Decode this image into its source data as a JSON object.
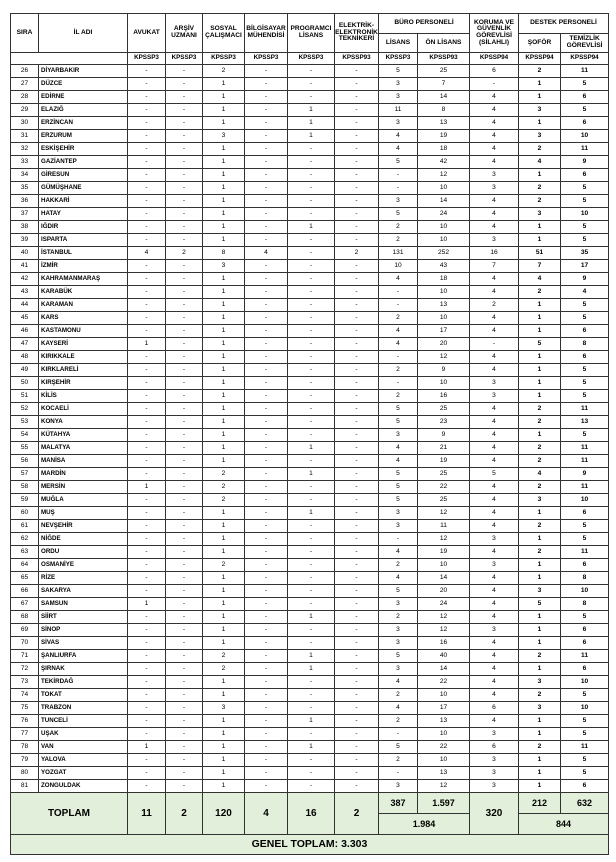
{
  "headers": {
    "sira": "SIRA",
    "il_adi": "İL ADI",
    "avukat": "AVUKAT",
    "arsiv": "ARŞİV UZMANI",
    "sosyal": "SOSYAL ÇALIŞMACI",
    "bilgisayar": "BİLGİSAYAR MÜHENDİSİ",
    "programci": "PROGRAMCI LİSANS",
    "elektrik": "ELEKTRİK-ELEKTRONİK TEKNİKERİ",
    "buro": "BÜRO PERSONELİ",
    "buro_lisans": "LİSANS",
    "buro_onlisans": "ÖN LİSANS",
    "koruma": "KORUMA VE GÜVENLİK GÖREVLİSİ (SİLAHLI)",
    "destek": "DESTEK PERSONELİ",
    "sofor": "ŞOFÖR",
    "temizlik": "TEMİZLİK GÖREVLİSİ"
  },
  "kpss": [
    "KPSSP3",
    "KPSSP3",
    "KPSSP3",
    "KPSSP3",
    "KPSSP3",
    "KPSSP93",
    "KPSSP3",
    "KPSSP93",
    "KPSSP94",
    "KPSSP94",
    "KPSSP94"
  ],
  "rows": [
    [
      "26",
      "DİYARBAKIR",
      "-",
      "-",
      "2",
      "-",
      "-",
      "-",
      "5",
      "25",
      "6",
      "2",
      "11"
    ],
    [
      "27",
      "DÜZCE",
      "-",
      "-",
      "1",
      "-",
      "-",
      "-",
      "3",
      "7",
      "-",
      "1",
      "5"
    ],
    [
      "28",
      "EDİRNE",
      "-",
      "-",
      "1",
      "-",
      "-",
      "-",
      "3",
      "14",
      "4",
      "1",
      "6"
    ],
    [
      "29",
      "ELAZIĞ",
      "-",
      "-",
      "1",
      "-",
      "1",
      "-",
      "11",
      "8",
      "4",
      "3",
      "5"
    ],
    [
      "30",
      "ERZİNCAN",
      "-",
      "-",
      "1",
      "-",
      "1",
      "-",
      "3",
      "13",
      "4",
      "1",
      "6"
    ],
    [
      "31",
      "ERZURUM",
      "-",
      "-",
      "3",
      "-",
      "1",
      "-",
      "4",
      "19",
      "4",
      "3",
      "10"
    ],
    [
      "32",
      "ESKİŞEHİR",
      "-",
      "-",
      "1",
      "-",
      "-",
      "-",
      "4",
      "18",
      "4",
      "2",
      "11"
    ],
    [
      "33",
      "GAZİANTEP",
      "-",
      "-",
      "1",
      "-",
      "-",
      "-",
      "5",
      "42",
      "4",
      "4",
      "9"
    ],
    [
      "34",
      "GİRESUN",
      "-",
      "-",
      "1",
      "-",
      "-",
      "-",
      "-",
      "12",
      "3",
      "1",
      "6"
    ],
    [
      "35",
      "GÜMÜŞHANE",
      "-",
      "-",
      "1",
      "-",
      "-",
      "-",
      "-",
      "10",
      "3",
      "2",
      "5"
    ],
    [
      "36",
      "HAKKARİ",
      "-",
      "-",
      "1",
      "-",
      "-",
      "-",
      "3",
      "14",
      "4",
      "2",
      "5"
    ],
    [
      "37",
      "HATAY",
      "-",
      "-",
      "1",
      "-",
      "-",
      "-",
      "5",
      "24",
      "4",
      "3",
      "10"
    ],
    [
      "38",
      "IĞDIR",
      "-",
      "-",
      "1",
      "-",
      "1",
      "-",
      "2",
      "10",
      "4",
      "1",
      "5"
    ],
    [
      "39",
      "ISPARTA",
      "-",
      "-",
      "1",
      "-",
      "-",
      "-",
      "2",
      "10",
      "3",
      "1",
      "5"
    ],
    [
      "40",
      "İSTANBUL",
      "4",
      "2",
      "8",
      "4",
      "-",
      "2",
      "131",
      "252",
      "16",
      "51",
      "35"
    ],
    [
      "41",
      "İZMİR",
      "-",
      "-",
      "3",
      "-",
      "-",
      "-",
      "10",
      "43",
      "7",
      "7",
      "17"
    ],
    [
      "42",
      "KAHRAMANMARAŞ",
      "-",
      "-",
      "1",
      "-",
      "-",
      "-",
      "4",
      "18",
      "4",
      "4",
      "9"
    ],
    [
      "43",
      "KARABÜK",
      "-",
      "-",
      "1",
      "-",
      "-",
      "-",
      "-",
      "10",
      "4",
      "2",
      "4"
    ],
    [
      "44",
      "KARAMAN",
      "-",
      "-",
      "1",
      "-",
      "-",
      "-",
      "-",
      "13",
      "2",
      "1",
      "5"
    ],
    [
      "45",
      "KARS",
      "-",
      "-",
      "1",
      "-",
      "-",
      "-",
      "2",
      "10",
      "4",
      "1",
      "5"
    ],
    [
      "46",
      "KASTAMONU",
      "-",
      "-",
      "1",
      "-",
      "-",
      "-",
      "4",
      "17",
      "4",
      "1",
      "6"
    ],
    [
      "47",
      "KAYSERİ",
      "1",
      "-",
      "1",
      "-",
      "-",
      "-",
      "4",
      "20",
      "-",
      "5",
      "8"
    ],
    [
      "48",
      "KIRIKKALE",
      "-",
      "-",
      "1",
      "-",
      "-",
      "-",
      "-",
      "12",
      "4",
      "1",
      "6"
    ],
    [
      "49",
      "KIRKLARELİ",
      "-",
      "-",
      "1",
      "-",
      "-",
      "-",
      "2",
      "9",
      "4",
      "1",
      "5"
    ],
    [
      "50",
      "KIRŞEHİR",
      "-",
      "-",
      "1",
      "-",
      "-",
      "-",
      "-",
      "10",
      "3",
      "1",
      "5"
    ],
    [
      "51",
      "KİLİS",
      "-",
      "-",
      "1",
      "-",
      "-",
      "-",
      "2",
      "16",
      "3",
      "1",
      "5"
    ],
    [
      "52",
      "KOCAELİ",
      "-",
      "-",
      "1",
      "-",
      "-",
      "-",
      "5",
      "25",
      "4",
      "2",
      "11"
    ],
    [
      "53",
      "KONYA",
      "-",
      "-",
      "1",
      "-",
      "-",
      "-",
      "5",
      "23",
      "4",
      "2",
      "13"
    ],
    [
      "54",
      "KÜTAHYA",
      "-",
      "-",
      "1",
      "-",
      "-",
      "-",
      "3",
      "9",
      "4",
      "1",
      "5"
    ],
    [
      "55",
      "MALATYA",
      "-",
      "-",
      "1",
      "-",
      "1",
      "-",
      "4",
      "21",
      "4",
      "2",
      "11"
    ],
    [
      "56",
      "MANİSA",
      "-",
      "-",
      "1",
      "-",
      "-",
      "-",
      "4",
      "19",
      "4",
      "2",
      "11"
    ],
    [
      "57",
      "MARDİN",
      "-",
      "-",
      "2",
      "-",
      "1",
      "-",
      "5",
      "25",
      "5",
      "4",
      "9"
    ],
    [
      "58",
      "MERSİN",
      "1",
      "-",
      "2",
      "-",
      "-",
      "-",
      "5",
      "22",
      "4",
      "2",
      "11"
    ],
    [
      "59",
      "MUĞLA",
      "-",
      "-",
      "2",
      "-",
      "-",
      "-",
      "5",
      "25",
      "4",
      "3",
      "10"
    ],
    [
      "60",
      "MUŞ",
      "-",
      "-",
      "1",
      "-",
      "1",
      "-",
      "3",
      "12",
      "4",
      "1",
      "6"
    ],
    [
      "61",
      "NEVŞEHİR",
      "-",
      "-",
      "1",
      "-",
      "-",
      "-",
      "3",
      "11",
      "4",
      "2",
      "5"
    ],
    [
      "62",
      "NİĞDE",
      "-",
      "-",
      "1",
      "-",
      "-",
      "-",
      "-",
      "12",
      "3",
      "1",
      "5"
    ],
    [
      "63",
      "ORDU",
      "-",
      "-",
      "1",
      "-",
      "-",
      "-",
      "4",
      "19",
      "4",
      "2",
      "11"
    ],
    [
      "64",
      "OSMANİYE",
      "-",
      "-",
      "2",
      "-",
      "-",
      "-",
      "2",
      "10",
      "3",
      "1",
      "6"
    ],
    [
      "65",
      "RİZE",
      "-",
      "-",
      "1",
      "-",
      "-",
      "-",
      "4",
      "14",
      "4",
      "1",
      "8"
    ],
    [
      "66",
      "SAKARYA",
      "-",
      "-",
      "1",
      "-",
      "-",
      "-",
      "5",
      "20",
      "4",
      "3",
      "10"
    ],
    [
      "67",
      "SAMSUN",
      "1",
      "-",
      "1",
      "-",
      "-",
      "-",
      "3",
      "24",
      "4",
      "5",
      "8"
    ],
    [
      "68",
      "SİİRT",
      "-",
      "-",
      "1",
      "-",
      "1",
      "-",
      "2",
      "12",
      "4",
      "1",
      "5"
    ],
    [
      "69",
      "SİNOP",
      "-",
      "-",
      "1",
      "-",
      "-",
      "-",
      "3",
      "12",
      "3",
      "1",
      "6"
    ],
    [
      "70",
      "SİVAS",
      "-",
      "-",
      "1",
      "-",
      "-",
      "-",
      "3",
      "16",
      "4",
      "1",
      "6"
    ],
    [
      "71",
      "ŞANLIURFA",
      "-",
      "-",
      "2",
      "-",
      "1",
      "-",
      "5",
      "40",
      "4",
      "2",
      "11"
    ],
    [
      "72",
      "ŞIRNAK",
      "-",
      "-",
      "2",
      "-",
      "1",
      "-",
      "3",
      "14",
      "4",
      "1",
      "6"
    ],
    [
      "73",
      "TEKİRDAĞ",
      "-",
      "-",
      "1",
      "-",
      "-",
      "-",
      "4",
      "22",
      "4",
      "3",
      "10"
    ],
    [
      "74",
      "TOKAT",
      "-",
      "-",
      "1",
      "-",
      "-",
      "-",
      "2",
      "10",
      "4",
      "2",
      "5"
    ],
    [
      "75",
      "TRABZON",
      "-",
      "-",
      "3",
      "-",
      "-",
      "-",
      "4",
      "17",
      "6",
      "3",
      "10"
    ],
    [
      "76",
      "TUNCELİ",
      "-",
      "-",
      "1",
      "-",
      "1",
      "-",
      "2",
      "13",
      "4",
      "1",
      "5"
    ],
    [
      "77",
      "UŞAK",
      "-",
      "-",
      "1",
      "-",
      "-",
      "-",
      "-",
      "10",
      "3",
      "1",
      "5"
    ],
    [
      "78",
      "VAN",
      "1",
      "-",
      "1",
      "-",
      "1",
      "-",
      "5",
      "22",
      "6",
      "2",
      "11"
    ],
    [
      "79",
      "YALOVA",
      "-",
      "-",
      "1",
      "-",
      "-",
      "-",
      "2",
      "10",
      "3",
      "1",
      "5"
    ],
    [
      "80",
      "YOZGAT",
      "-",
      "-",
      "1",
      "-",
      "-",
      "-",
      "-",
      "13",
      "3",
      "1",
      "5"
    ],
    [
      "81",
      "ZONGULDAK",
      "-",
      "-",
      "1",
      "-",
      "-",
      "-",
      "3",
      "12",
      "3",
      "1",
      "6"
    ]
  ],
  "totals": {
    "label": "TOPLAM",
    "avukat": "11",
    "arsiv": "2",
    "sosyal": "120",
    "bilgisayar": "4",
    "programci": "16",
    "elektrik": "2",
    "buro_lisans": "387",
    "buro_onlisans": "1.597",
    "buro_total": "1.984",
    "koruma": "320",
    "sofor": "212",
    "temizlik": "632",
    "destek_total": "844"
  },
  "grand_total": "GENEL TOPLAM: 3.303",
  "colors": {
    "total_bg": "#e2efda",
    "border": "#333333"
  }
}
